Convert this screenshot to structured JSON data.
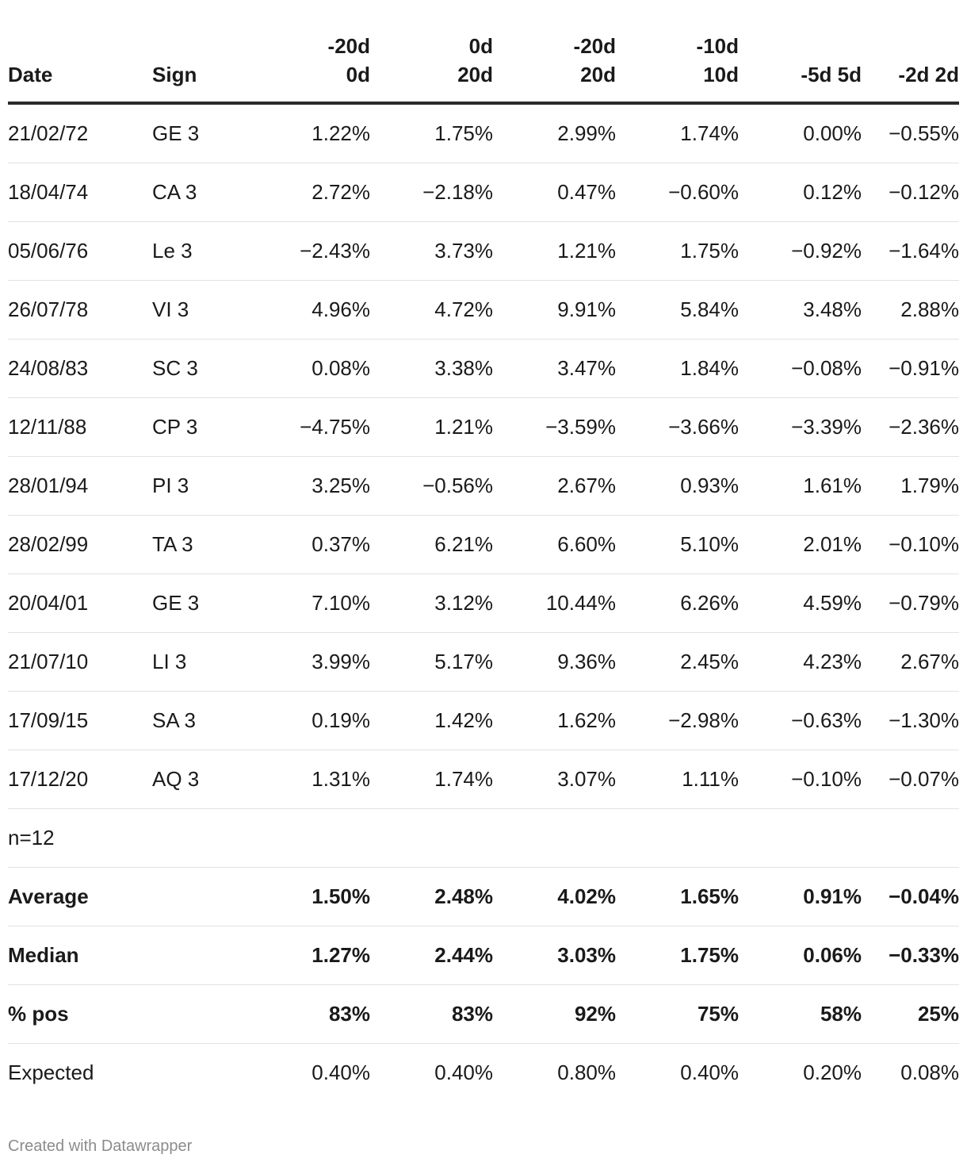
{
  "table": {
    "headers": [
      {
        "line1": "",
        "line2": "Date"
      },
      {
        "line1": "",
        "line2": "Sign"
      },
      {
        "line1": "-20d",
        "line2": "0d"
      },
      {
        "line1": "0d",
        "line2": "20d"
      },
      {
        "line1": "-20d",
        "line2": "20d"
      },
      {
        "line1": "-10d",
        "line2": "10d"
      },
      {
        "line1": "",
        "line2": "-5d 5d"
      },
      {
        "line1": "",
        "line2": "-2d 2d"
      }
    ],
    "rows": [
      [
        "21/02/72",
        "GE 3",
        "1.22%",
        "1.75%",
        "2.99%",
        "1.74%",
        "0.00%",
        "−0.55%"
      ],
      [
        "18/04/74",
        "CA 3",
        "2.72%",
        "−2.18%",
        "0.47%",
        "−0.60%",
        "0.12%",
        "−0.12%"
      ],
      [
        "05/06/76",
        "Le 3",
        "−2.43%",
        "3.73%",
        "1.21%",
        "1.75%",
        "−0.92%",
        "−1.64%"
      ],
      [
        "26/07/78",
        "VI 3",
        "4.96%",
        "4.72%",
        "9.91%",
        "5.84%",
        "3.48%",
        "2.88%"
      ],
      [
        "24/08/83",
        "SC 3",
        "0.08%",
        "3.38%",
        "3.47%",
        "1.84%",
        "−0.08%",
        "−0.91%"
      ],
      [
        "12/11/88",
        "CP 3",
        "−4.75%",
        "1.21%",
        "−3.59%",
        "−3.66%",
        "−3.39%",
        "−2.36%"
      ],
      [
        "28/01/94",
        "PI 3",
        "3.25%",
        "−0.56%",
        "2.67%",
        "0.93%",
        "1.61%",
        "1.79%"
      ],
      [
        "28/02/99",
        "TA 3",
        "0.37%",
        "6.21%",
        "6.60%",
        "5.10%",
        "2.01%",
        "−0.10%"
      ],
      [
        "20/04/01",
        "GE 3",
        "7.10%",
        "3.12%",
        "10.44%",
        "6.26%",
        "4.59%",
        "−0.79%"
      ],
      [
        "21/07/10",
        "LI 3",
        "3.99%",
        "5.17%",
        "9.36%",
        "2.45%",
        "4.23%",
        "2.67%"
      ],
      [
        "17/09/15",
        "SA 3",
        "0.19%",
        "1.42%",
        "1.62%",
        "−2.98%",
        "−0.63%",
        "−1.30%"
      ],
      [
        "17/12/20",
        "AQ 3",
        "1.31%",
        "1.74%",
        "3.07%",
        "1.11%",
        "−0.10%",
        "−0.07%"
      ]
    ],
    "n_label": "n=12",
    "summary": [
      {
        "label": "Average",
        "bold": true,
        "values": [
          "1.50%",
          "2.48%",
          "4.02%",
          "1.65%",
          "0.91%",
          "−0.04%"
        ]
      },
      {
        "label": "Median",
        "bold": true,
        "values": [
          "1.27%",
          "2.44%",
          "3.03%",
          "1.75%",
          "0.06%",
          "−0.33%"
        ]
      },
      {
        "label": "% pos",
        "bold": true,
        "values": [
          "83%",
          "83%",
          "92%",
          "75%",
          "58%",
          "25%"
        ]
      },
      {
        "label": "Expected",
        "bold": false,
        "values": [
          "0.40%",
          "0.40%",
          "0.80%",
          "0.40%",
          "0.20%",
          "0.08%"
        ]
      }
    ]
  },
  "footer": {
    "credit": "Created with Datawrapper"
  }
}
